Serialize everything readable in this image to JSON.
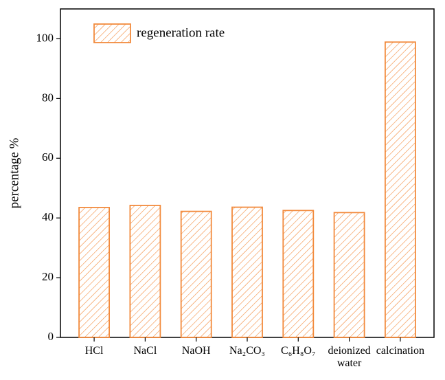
{
  "chart_data": {
    "type": "bar",
    "categories": [
      "HCl",
      "NaCl",
      "NaOH",
      "Na₂CO₃",
      "C₆H₈O₇",
      "deionized water",
      "calcination"
    ],
    "series": [
      {
        "name": "regeneration rate",
        "color": "#f28a3c",
        "values": [
          43.5,
          44.2,
          42.2,
          43.6,
          42.5,
          41.8,
          98.9
        ]
      }
    ],
    "ylabel": "percentage %",
    "ylim": [
      0,
      110
    ],
    "yticks": [
      0,
      20,
      40,
      60,
      80,
      100
    ],
    "legend": "top-left"
  }
}
